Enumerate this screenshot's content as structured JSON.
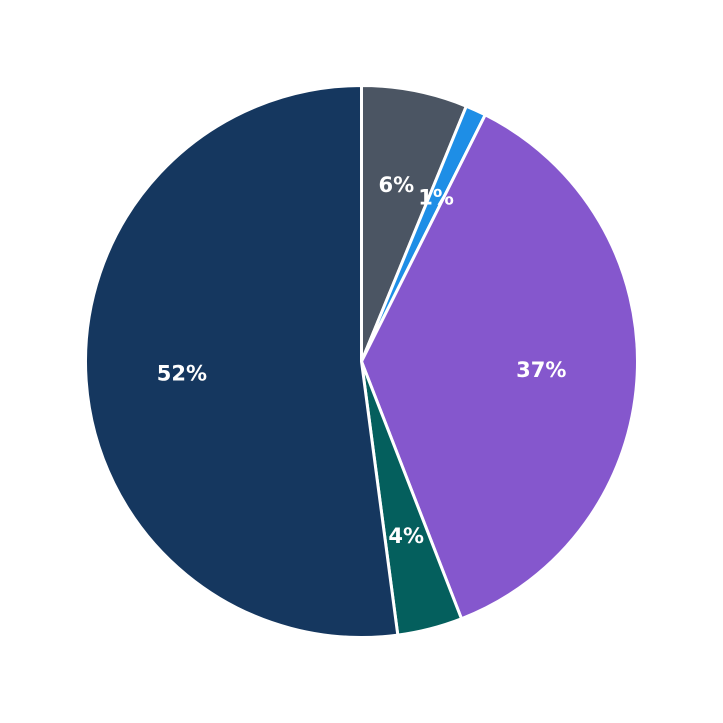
{
  "chart_data": {
    "type": "pie",
    "title": "",
    "start_angle_deg": 90,
    "direction": "clockwise",
    "slices": [
      {
        "label": "6%",
        "value": 6.2,
        "color": "#4b5563"
      },
      {
        "label": "1%",
        "value": 1.2,
        "color": "#1e8ee6"
      },
      {
        "label": "37%",
        "value": 36.7,
        "color": "#8557cd"
      },
      {
        "label": "4%",
        "value": 3.8,
        "color": "#045f5d"
      },
      {
        "label": "52%",
        "value": 52.1,
        "color": "#15375f"
      }
    ]
  }
}
